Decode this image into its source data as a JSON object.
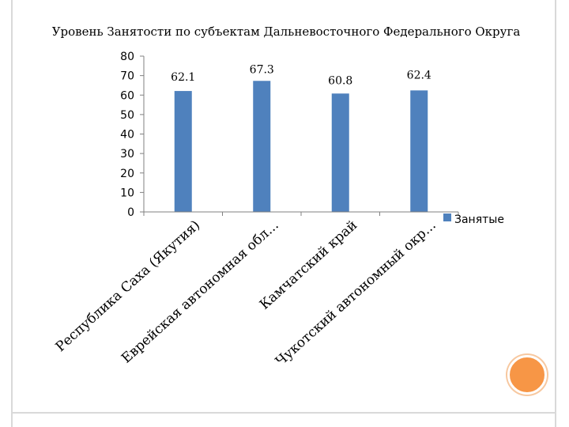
{
  "chart_data": {
    "type": "bar",
    "title": "Уровень Занятости по субъектам Дальневосточного Федерального Округа",
    "categories": [
      "Республика Саха (Якутия)",
      "Еврейская автономная обл...",
      "Камчатский край",
      "Чукотский автономный окр..."
    ],
    "series": [
      {
        "name": "Занятые",
        "values": [
          62.1,
          67.3,
          60.8,
          62.4
        ],
        "color": "#4f81bd"
      }
    ],
    "data_labels": [
      "62.1",
      "67.3",
      "60.8",
      "62.4"
    ],
    "y_ticks": [
      "0",
      "10",
      "20",
      "30",
      "40",
      "50",
      "60",
      "70",
      "80"
    ],
    "ylim": [
      0,
      80
    ],
    "xlabel": "",
    "ylabel": "",
    "grid": false,
    "legend_position": "right"
  },
  "colors": {
    "bar": "#4f81bd",
    "accent_circle": "#f79646",
    "frame": "#d9d9d9"
  }
}
